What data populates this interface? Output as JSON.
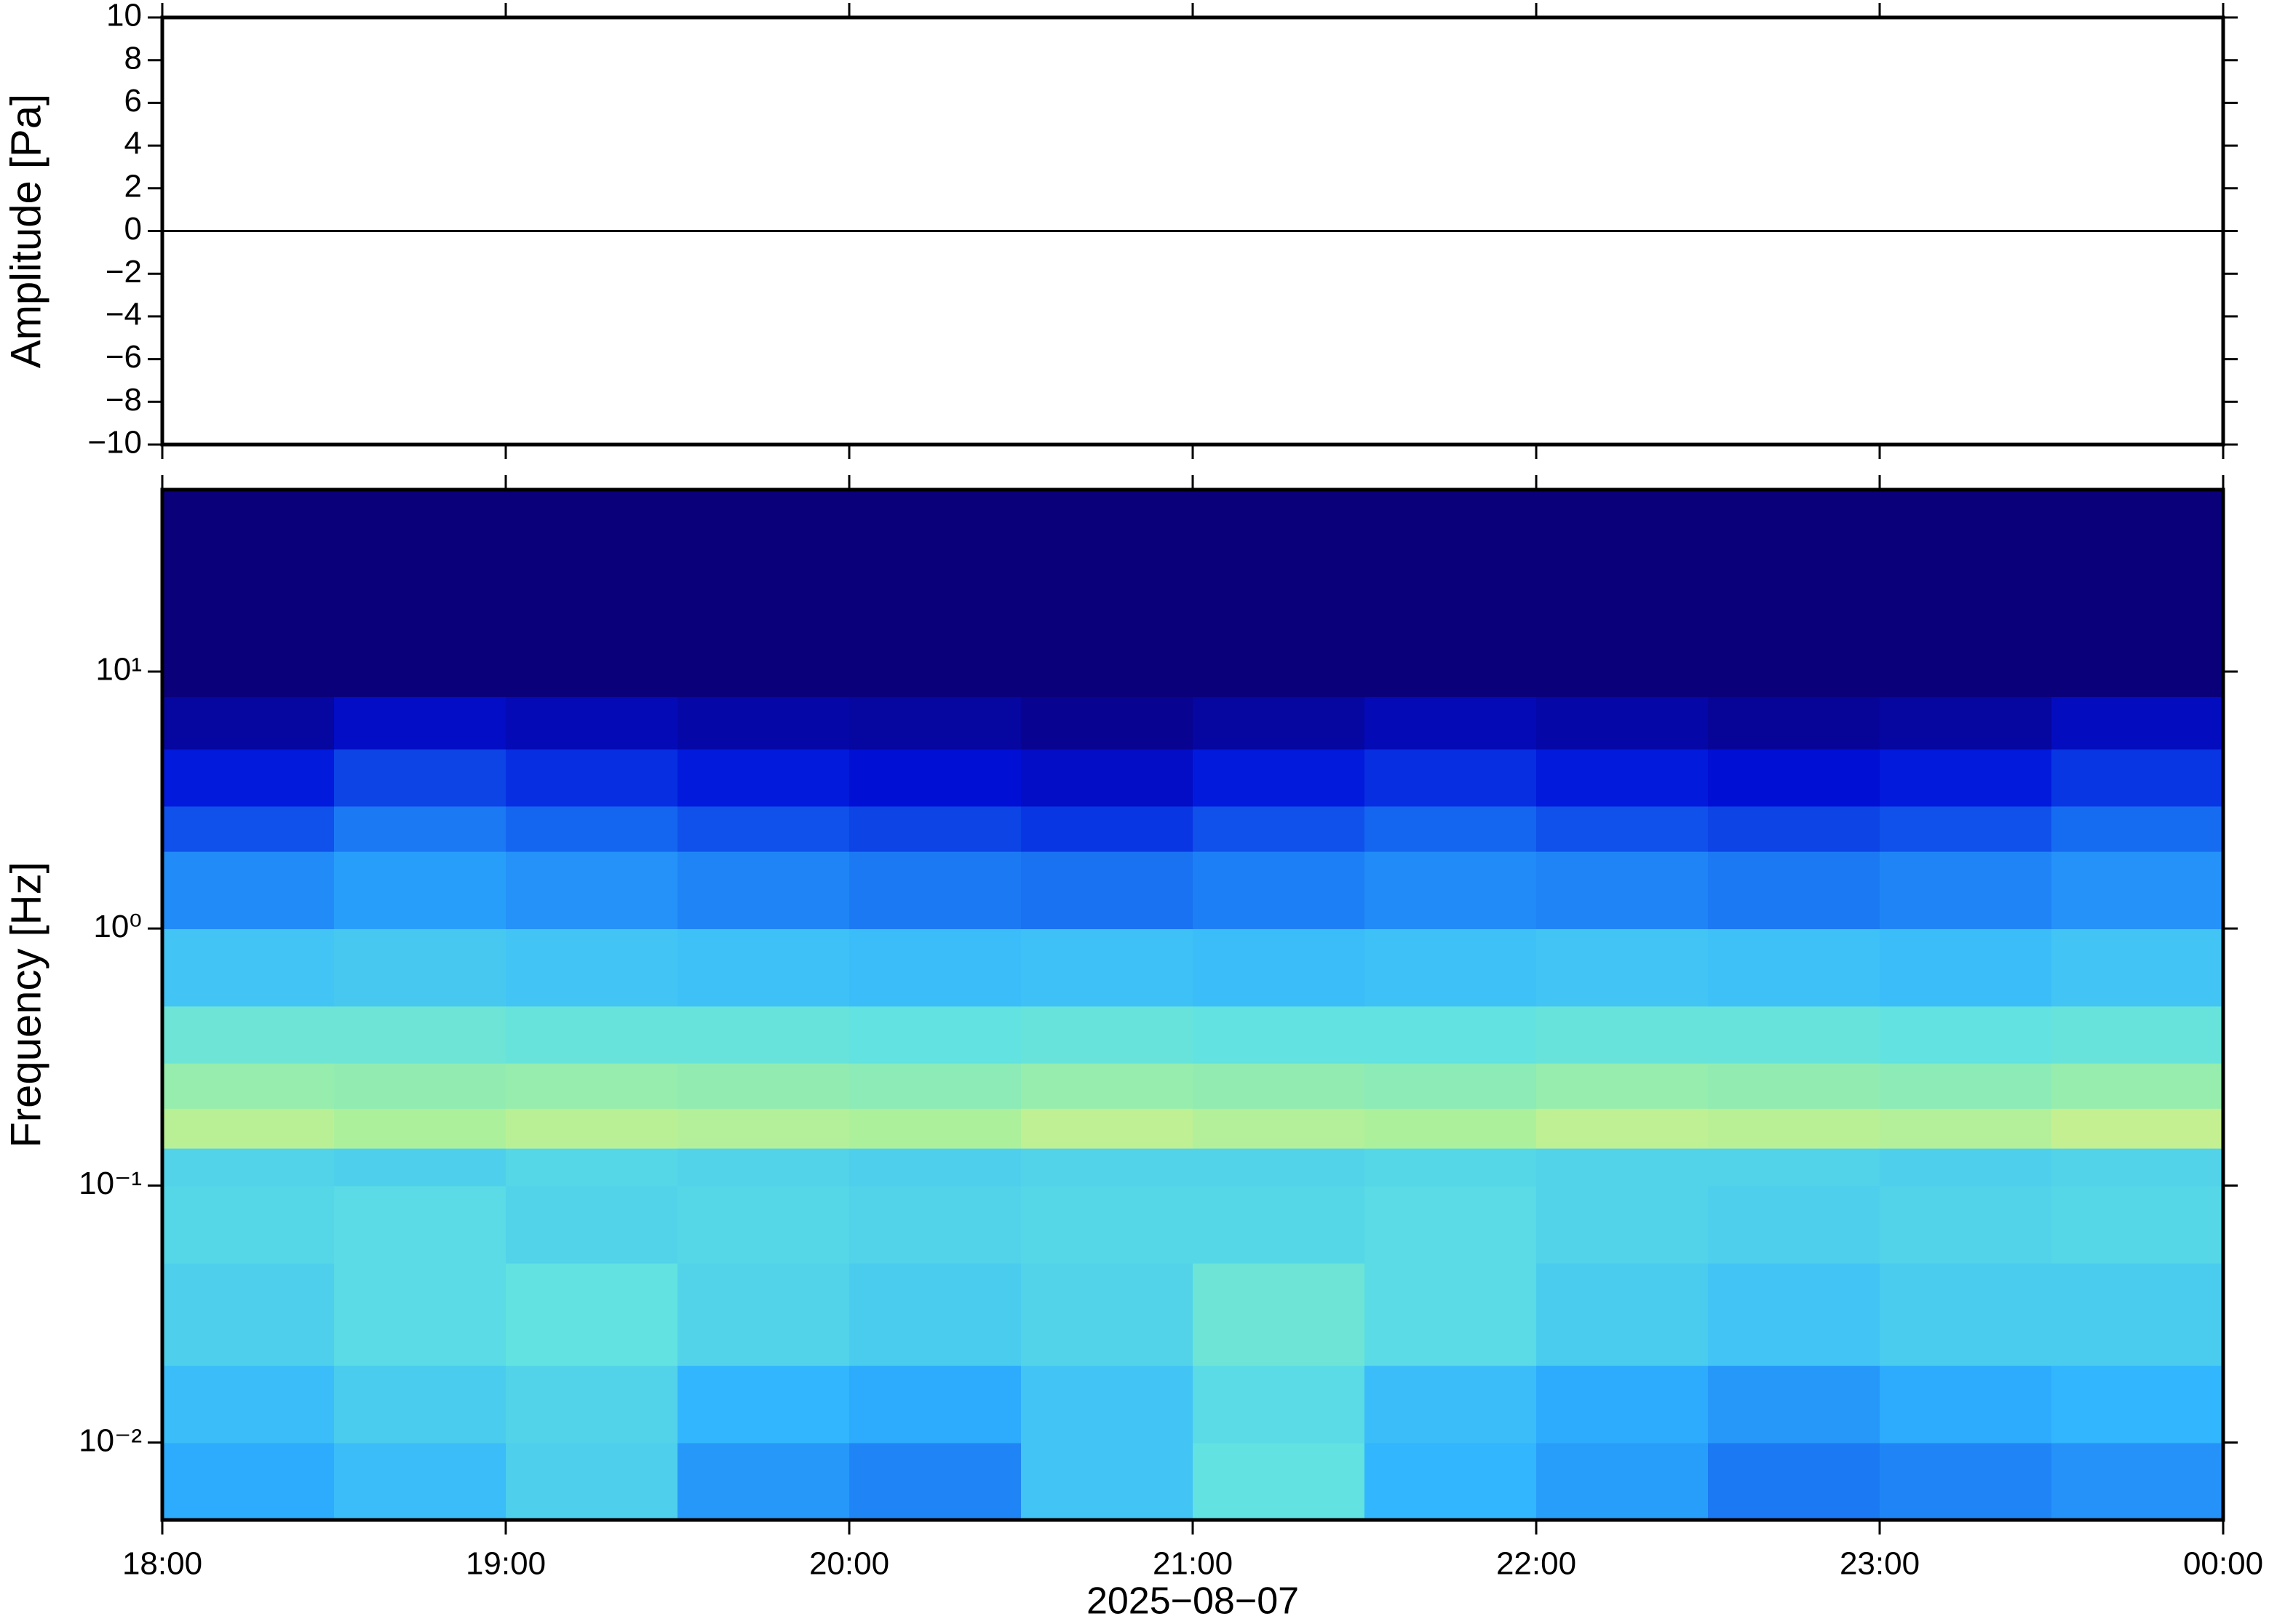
{
  "chart_data": [
    {
      "type": "line",
      "ylabel": "Amplitude [Pa]",
      "xlim": [
        18,
        24
      ],
      "ylim": [
        -10,
        10
      ],
      "yticks": [
        {
          "value": -10,
          "label": "−10"
        },
        {
          "value": -8,
          "label": "−8"
        },
        {
          "value": -6,
          "label": "−6"
        },
        {
          "value": -4,
          "label": "−4"
        },
        {
          "value": -2,
          "label": "−2"
        },
        0,
        2,
        4,
        6,
        8,
        10
      ],
      "x": [
        18,
        18.25,
        18.5,
        18.75,
        19,
        19.25,
        19.5,
        19.75,
        20,
        20.25,
        20.5,
        20.75,
        21,
        21.25,
        21.5,
        21.75,
        22,
        22.25,
        22.5,
        22.75,
        23,
        23.25,
        23.5,
        23.75,
        24
      ],
      "series": [
        {
          "color": "#000000",
          "values": [
            0,
            0,
            0,
            0,
            0,
            0,
            0,
            0,
            0,
            0,
            0,
            0,
            0,
            0,
            0,
            0,
            0,
            0,
            0,
            0,
            0,
            0,
            0,
            0,
            0
          ]
        }
      ]
    },
    {
      "type": "heatmap",
      "ylabel": "Frequency [Hz]",
      "xlabel": "2025−08−07",
      "xlim": [
        18,
        24
      ],
      "xticks": [
        {
          "value": 18,
          "label": "18:00"
        },
        {
          "value": 19,
          "label": "19:00"
        },
        {
          "value": 20,
          "label": "20:00"
        },
        {
          "value": 21,
          "label": "21:00"
        },
        {
          "value": 22,
          "label": "22:00"
        },
        {
          "value": 23,
          "label": "23:00"
        },
        {
          "value": 24,
          "label": "00:00"
        }
      ],
      "ylim": [
        0.005,
        51
      ],
      "log_y": true,
      "yticks": [
        {
          "value": 0.01,
          "label": "10⁻²"
        },
        {
          "value": 0.1,
          "label": "10⁻¹"
        },
        {
          "value": 1,
          "label": "10⁰"
        },
        {
          "value": 10,
          "label": "10¹"
        }
      ],
      "xbins": [
        18,
        18.5,
        19,
        19.5,
        20,
        20.5,
        21,
        21.5,
        22,
        22.5,
        23,
        23.5,
        24
      ],
      "ybins": [
        0.005,
        0.01,
        0.02,
        0.05,
        0.1,
        0.14,
        0.2,
        0.3,
        0.5,
        1,
        2,
        3,
        5,
        8,
        51
      ],
      "zlim": [
        0,
        1
      ],
      "colormap": [
        "#0a007a",
        "#0010d8",
        "#1466f0",
        "#30b4ff",
        "#62e2e0",
        "#a4f0a0",
        "#f0f07e",
        "#ffb04e",
        "#f03020"
      ],
      "values": [
        [
          0.36,
          0.4,
          0.45,
          0.33,
          0.3,
          0.42,
          0.5,
          0.38,
          0.34,
          0.28,
          0.3,
          0.32
        ],
        [
          0.4,
          0.44,
          0.46,
          0.38,
          0.36,
          0.42,
          0.48,
          0.4,
          0.36,
          0.33,
          0.36,
          0.38
        ],
        [
          0.45,
          0.48,
          0.5,
          0.46,
          0.44,
          0.46,
          0.52,
          0.48,
          0.44,
          0.42,
          0.44,
          0.44
        ],
        [
          0.47,
          0.48,
          0.46,
          0.47,
          0.46,
          0.47,
          0.47,
          0.48,
          0.46,
          0.45,
          0.46,
          0.47
        ],
        [
          0.46,
          0.45,
          0.47,
          0.46,
          0.45,
          0.46,
          0.46,
          0.47,
          0.46,
          0.46,
          0.45,
          0.46
        ],
        [
          0.66,
          0.64,
          0.66,
          0.65,
          0.64,
          0.67,
          0.65,
          0.64,
          0.67,
          0.66,
          0.65,
          0.68
        ],
        [
          0.6,
          0.59,
          0.6,
          0.59,
          0.58,
          0.6,
          0.59,
          0.58,
          0.6,
          0.59,
          0.58,
          0.6
        ],
        [
          0.52,
          0.52,
          0.51,
          0.51,
          0.5,
          0.51,
          0.5,
          0.5,
          0.51,
          0.51,
          0.5,
          0.51
        ],
        [
          0.42,
          0.43,
          0.42,
          0.41,
          0.4,
          0.41,
          0.4,
          0.41,
          0.42,
          0.41,
          0.4,
          0.42
        ],
        [
          0.31,
          0.34,
          0.32,
          0.3,
          0.28,
          0.27,
          0.29,
          0.31,
          0.3,
          0.28,
          0.3,
          0.32
        ],
        [
          0.22,
          0.28,
          0.25,
          0.22,
          0.2,
          0.18,
          0.22,
          0.25,
          0.22,
          0.2,
          0.22,
          0.26
        ],
        [
          0.14,
          0.2,
          0.17,
          0.14,
          0.12,
          0.1,
          0.14,
          0.17,
          0.14,
          0.12,
          0.14,
          0.18
        ],
        [
          0.05,
          0.1,
          0.08,
          0.06,
          0.05,
          0.03,
          0.05,
          0.08,
          0.06,
          0.04,
          0.05,
          0.09
        ],
        [
          0,
          0,
          0,
          0,
          0,
          0,
          0,
          0,
          0,
          0,
          0,
          0
        ]
      ]
    }
  ]
}
